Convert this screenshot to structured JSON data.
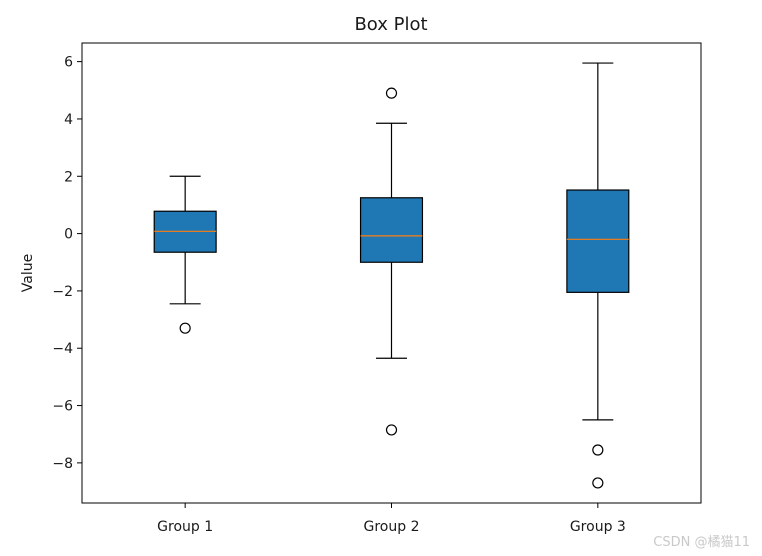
{
  "chart_data": {
    "type": "box",
    "title": "Box Plot",
    "xlabel": "",
    "ylabel": "Value",
    "ylim": [
      -9.4,
      6.65
    ],
    "yticks": [
      6,
      4,
      2,
      0,
      -2,
      -4,
      -6,
      -8
    ],
    "ytick_labels": [
      "6",
      "4",
      "2",
      "0",
      "−2",
      "−4",
      "−6",
      "−8"
    ],
    "categories": [
      "Group 1",
      "Group 2",
      "Group 3"
    ],
    "box_color": "#1f77b4",
    "median_color": "#ff7f0e",
    "grid": false,
    "groups": [
      {
        "label": "Group 1",
        "whisker_low": -2.45,
        "q1": -0.65,
        "median": 0.08,
        "q3": 0.78,
        "whisker_high": 2.0,
        "outliers": [
          -3.3
        ]
      },
      {
        "label": "Group 2",
        "whisker_low": -4.35,
        "q1": -1.0,
        "median": -0.08,
        "q3": 1.25,
        "whisker_high": 3.85,
        "outliers": [
          4.9,
          -6.85
        ]
      },
      {
        "label": "Group 3",
        "whisker_low": -6.5,
        "q1": -2.05,
        "median": -0.2,
        "q3": 1.52,
        "whisker_high": 5.95,
        "outliers": [
          -7.55,
          -8.7
        ]
      }
    ]
  },
  "watermark": "CSDN @橘猫11"
}
